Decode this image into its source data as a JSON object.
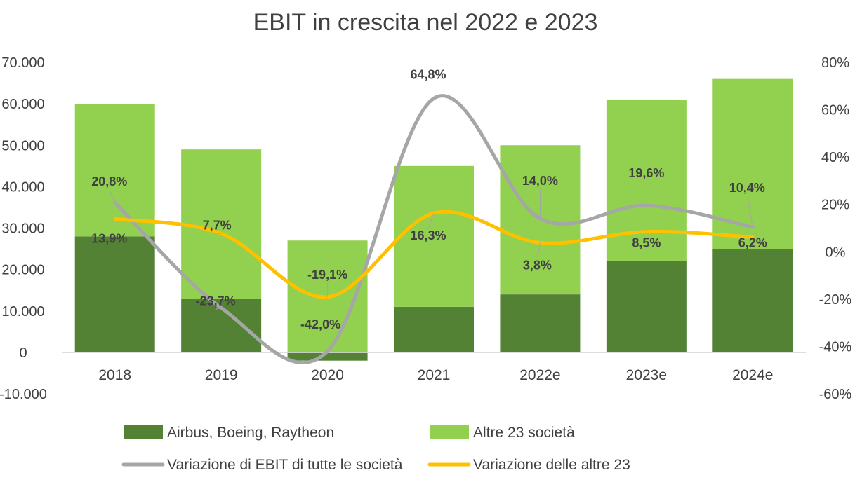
{
  "chart_data": {
    "type": "bar",
    "stacked": true,
    "title": "EBIT in crescita nel 2022 e 2023",
    "categories": [
      "2018",
      "2019",
      "2020",
      "2021",
      "2022e",
      "2023e",
      "2024e"
    ],
    "series": [
      {
        "name": "Airbus, Boeing, Raytheon",
        "type": "bar",
        "axis": "left",
        "color": "#548235",
        "values": [
          28000,
          13000,
          -2000,
          11000,
          14000,
          22000,
          25000
        ]
      },
      {
        "name": "Altre 23 società",
        "type": "bar",
        "axis": "left",
        "color": "#92D050",
        "values": [
          32000,
          36000,
          27000,
          34000,
          36000,
          39000,
          41000
        ]
      },
      {
        "name": "Variazione di EBIT di tutte le società",
        "type": "line",
        "axis": "right",
        "color": "#A6A6A6",
        "values": [
          20.8,
          -23.7,
          -42.0,
          64.8,
          14.0,
          19.6,
          10.4
        ],
        "labels": [
          "20,8%",
          "-23,7%",
          "-42,0%",
          "64,8%",
          "14,0%",
          "19,6%",
          "10,4%"
        ]
      },
      {
        "name": "Variazione delle altre 23",
        "type": "line",
        "axis": "right",
        "color": "#FFC000",
        "values": [
          13.9,
          7.7,
          -19.1,
          16.3,
          3.8,
          8.5,
          6.2
        ],
        "labels": [
          "13,9%",
          "7,7%",
          "-19,1%",
          "16,3%",
          "3,8%",
          "8,5%",
          "6,2%"
        ]
      }
    ],
    "y_left": {
      "min": -10000,
      "max": 70000,
      "step": 10000,
      "tick_labels": [
        "-10.000",
        "0",
        "10.000",
        "20.000",
        "30.000",
        "40.000",
        "50.000",
        "60.000",
        "70.000"
      ]
    },
    "y_right": {
      "min": -60,
      "max": 80,
      "step": 20,
      "tick_labels": [
        "-60%",
        "-40%",
        "-20%",
        "0%",
        "20%",
        "40%",
        "60%",
        "80%"
      ]
    },
    "grid": false,
    "legend_position": "bottom"
  }
}
